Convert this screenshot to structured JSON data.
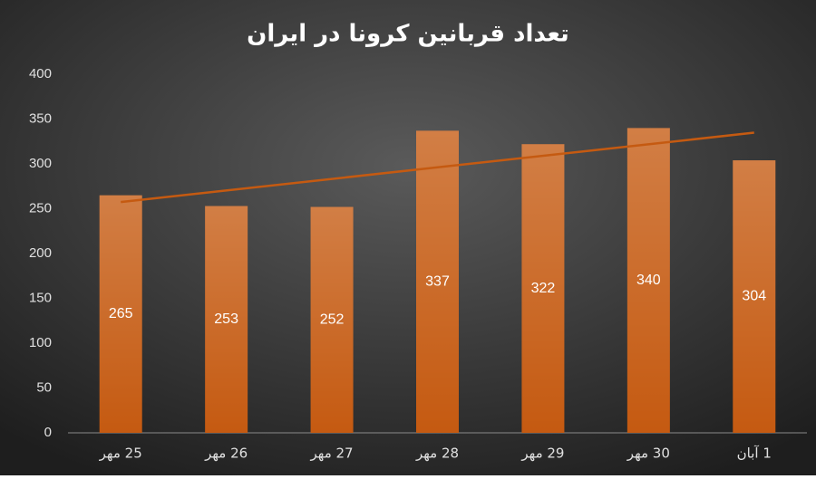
{
  "chart_data": {
    "type": "bar",
    "title": "تعداد قربانین کرونا در ایران",
    "categories": [
      "25 مهر",
      "26 مهر",
      "27 مهر",
      "28 مهر",
      "29 مهر",
      "30 مهر",
      "1 آبان"
    ],
    "values": [
      265,
      253,
      252,
      337,
      322,
      340,
      304
    ],
    "color": "#c55a11",
    "trendline": {
      "values": [
        257.5,
        334.8
      ],
      "color": "#c55a11"
    },
    "ylim": [
      0,
      400
    ],
    "yticks": [
      0,
      50,
      100,
      150,
      200,
      250,
      300,
      350,
      400
    ]
  }
}
